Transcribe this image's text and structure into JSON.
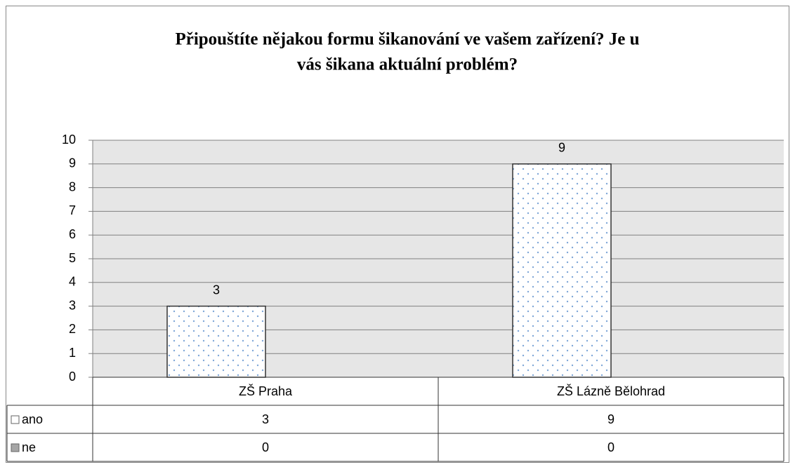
{
  "chart_data": {
    "type": "bar",
    "title": [
      "Připouštíte nějakou formu šikanování ve vašem zařízení? Je u",
      "vás šikana aktuální problém?"
    ],
    "categories": [
      "ZŠ Praha",
      "ZŠ Lázně Bělohrad"
    ],
    "series": [
      {
        "name": "ano",
        "color": "#ffffff",
        "values": [
          3,
          9
        ]
      },
      {
        "name": "ne",
        "color": "#a6a6a6",
        "values": [
          0,
          0
        ]
      }
    ],
    "ylim": [
      0,
      10
    ],
    "yticks": [
      0,
      1,
      2,
      3,
      4,
      5,
      6,
      7,
      8,
      9,
      10
    ],
    "grid": true,
    "data_table": true
  }
}
